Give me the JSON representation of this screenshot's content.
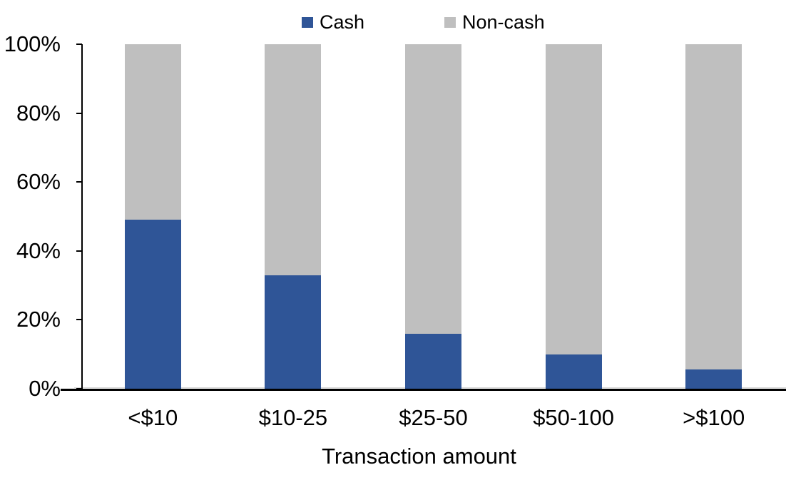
{
  "chart_data": {
    "type": "bar",
    "subtype": "100-percent-stacked-column",
    "title": "",
    "xlabel": "Transaction amount",
    "ylabel": "",
    "categories": [
      "<$10",
      "$10-25",
      "$25-50",
      "$50-100",
      ">$100"
    ],
    "series": [
      {
        "name": "Cash",
        "color": "#2F5597",
        "values": [
          49,
          33,
          16,
          10,
          5.5
        ]
      },
      {
        "name": "Non-cash",
        "color": "#BFBFBF",
        "values": [
          51,
          67,
          84,
          90,
          94.5
        ]
      }
    ],
    "ylim": [
      0,
      100
    ],
    "y_ticks": [
      0,
      20,
      40,
      60,
      80,
      100
    ],
    "y_tick_labels": [
      "0%",
      "20%",
      "40%",
      "60%",
      "80%",
      "100%"
    ],
    "grid": false,
    "legend_position": "top-center",
    "axis_color": "#000000"
  }
}
